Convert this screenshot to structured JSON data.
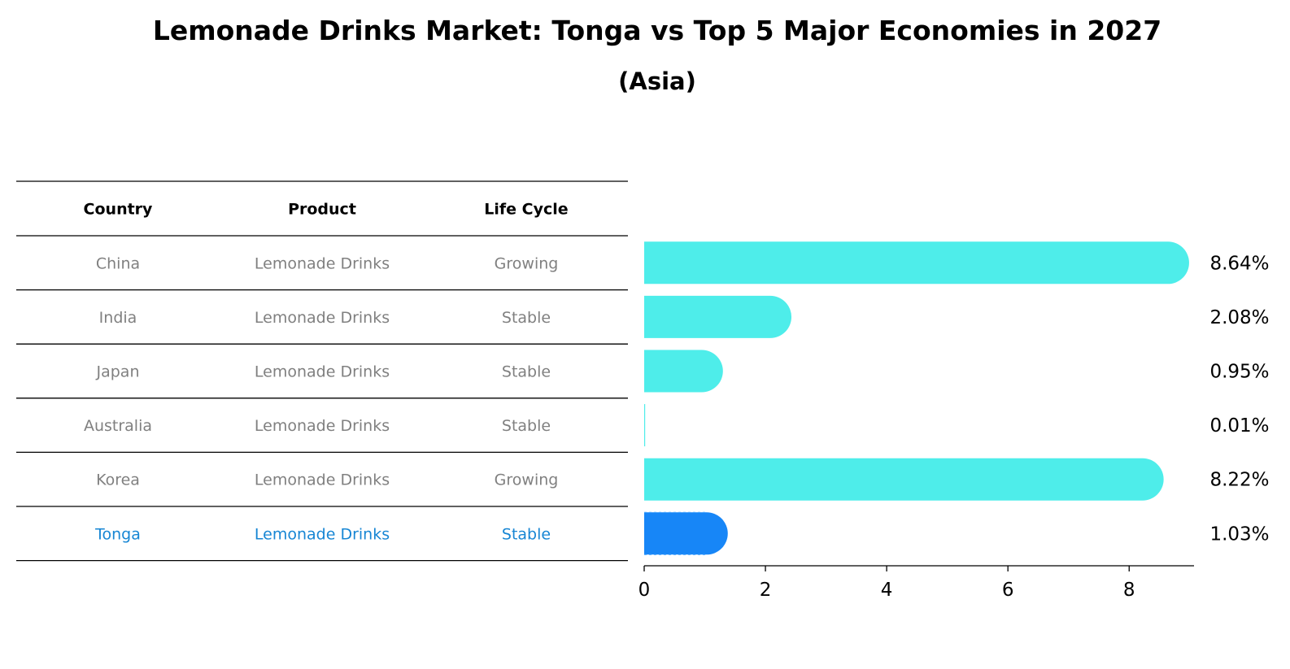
{
  "title": "Lemonade Drinks Market: Tonga vs Top 5 Major Economies in 2027",
  "subtitle": "(Asia)",
  "table": {
    "headers": [
      "Country",
      "Product",
      "Life Cycle"
    ],
    "rows": [
      {
        "country": "China",
        "product": "Lemonade Drinks",
        "life_cycle": "Growing",
        "highlight": false
      },
      {
        "country": "India",
        "product": "Lemonade Drinks",
        "life_cycle": "Stable",
        "highlight": false
      },
      {
        "country": "Japan",
        "product": "Lemonade Drinks",
        "life_cycle": "Stable",
        "highlight": false
      },
      {
        "country": "Australia",
        "product": "Lemonade Drinks",
        "life_cycle": "Stable",
        "highlight": false
      },
      {
        "country": "Korea",
        "product": "Lemonade Drinks",
        "life_cycle": "Growing",
        "highlight": false
      },
      {
        "country": "Tonga",
        "product": "Lemonade Drinks",
        "life_cycle": "Stable",
        "highlight": true
      }
    ]
  },
  "colors": {
    "bar": "#4EEDEA",
    "highlight_bar": "#1786F7",
    "highlight_text": "#1786D4",
    "normal_text": "#808080",
    "rule": "#000000"
  },
  "chart_data": {
    "type": "bar",
    "orientation": "horizontal",
    "categories": [
      "China",
      "India",
      "Japan",
      "Australia",
      "Korea",
      "Tonga"
    ],
    "values": [
      8.64,
      2.08,
      0.95,
      0.01,
      8.22,
      1.03
    ],
    "value_labels": [
      "8.64%",
      "2.08%",
      "0.95%",
      "0.01%",
      "8.22%",
      "1.03%"
    ],
    "highlight_category": "Tonga",
    "xlim": [
      0,
      9.07
    ],
    "xticks": [
      0,
      2,
      4,
      6,
      8
    ],
    "xlabel": "",
    "ylabel": "",
    "grid": false
  }
}
